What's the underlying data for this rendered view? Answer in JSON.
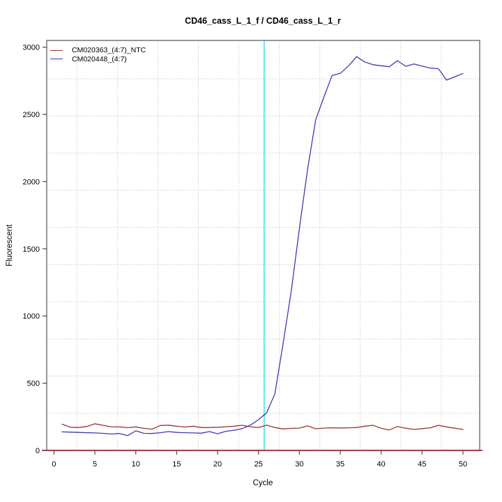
{
  "title": "CD46_cass_L_1_f / CD46_cass_L_1_r",
  "chart_data": {
    "type": "line",
    "title": "CD46_cass_L_1_f / CD46_cass_L_1_r",
    "xlabel": "Cycle",
    "ylabel": "Fluorescent",
    "x_ticks": [
      0,
      5,
      10,
      15,
      20,
      25,
      30,
      35,
      40,
      45,
      50
    ],
    "y_ticks": [
      0,
      500,
      1000,
      1500,
      2000,
      2500,
      3000
    ],
    "xlim": [
      -0.9,
      52.1
    ],
    "ylim": [
      -130,
      3050
    ],
    "grid": true,
    "x_gridlines_cycles": [
      2.8,
      7.75,
      12.7,
      17.65,
      22.6,
      27.55,
      32.5,
      37.45,
      42.4,
      47.35
    ],
    "y_gridlines_values": [
      276,
      553,
      829,
      1106,
      1382,
      1659,
      1935,
      2212,
      2488,
      2765
    ],
    "threshold_line": {
      "cycle": 25.7,
      "color": "#2ee0e8"
    },
    "zero_line": {
      "value": 0,
      "color": "#9c3232"
    },
    "legend_position": "top-left",
    "x": [
      1,
      2,
      3,
      4,
      5,
      6,
      7,
      8,
      9,
      10,
      11,
      12,
      13,
      14,
      15,
      16,
      17,
      18,
      19,
      20,
      21,
      22,
      23,
      24,
      25,
      26,
      27,
      28,
      29,
      30,
      31,
      32,
      33,
      34,
      35,
      36,
      37,
      38,
      39,
      40,
      41,
      42,
      43,
      44,
      45,
      46,
      47,
      48,
      49,
      50
    ],
    "series": [
      {
        "name": "CM020363_(4:7)_NTC",
        "color": "#9c3232",
        "values": [
          195,
          173,
          170,
          178,
          198,
          187,
          176,
          175,
          169,
          175,
          164,
          158,
          185,
          188,
          180,
          174,
          180,
          170,
          170,
          172,
          176,
          180,
          187,
          176,
          170,
          188,
          170,
          160,
          164,
          166,
          183,
          161,
          166,
          168,
          167,
          168,
          170,
          180,
          187,
          165,
          152,
          178,
          165,
          156,
          162,
          168,
          187,
          175,
          165,
          156
        ]
      },
      {
        "name": "CM020448_(4:7)",
        "color": "#3a3ab4",
        "values": [
          138,
          136,
          134,
          132,
          130,
          127,
          122,
          126,
          110,
          146,
          127,
          126,
          132,
          140,
          134,
          132,
          130,
          128,
          140,
          124,
          142,
          150,
          162,
          188,
          228,
          280,
          420,
          790,
          1180,
          1650,
          2090,
          2460,
          2630,
          2790,
          2805,
          2860,
          2930,
          2890,
          2870,
          2862,
          2855,
          2900,
          2858,
          2875,
          2860,
          2845,
          2840,
          2755,
          2780,
          2805
        ]
      }
    ],
    "colors": {
      "box_border": "#7d7d7d",
      "tick": "#555555",
      "gridline": "#b8b8b8",
      "background": "#ffffff"
    }
  }
}
